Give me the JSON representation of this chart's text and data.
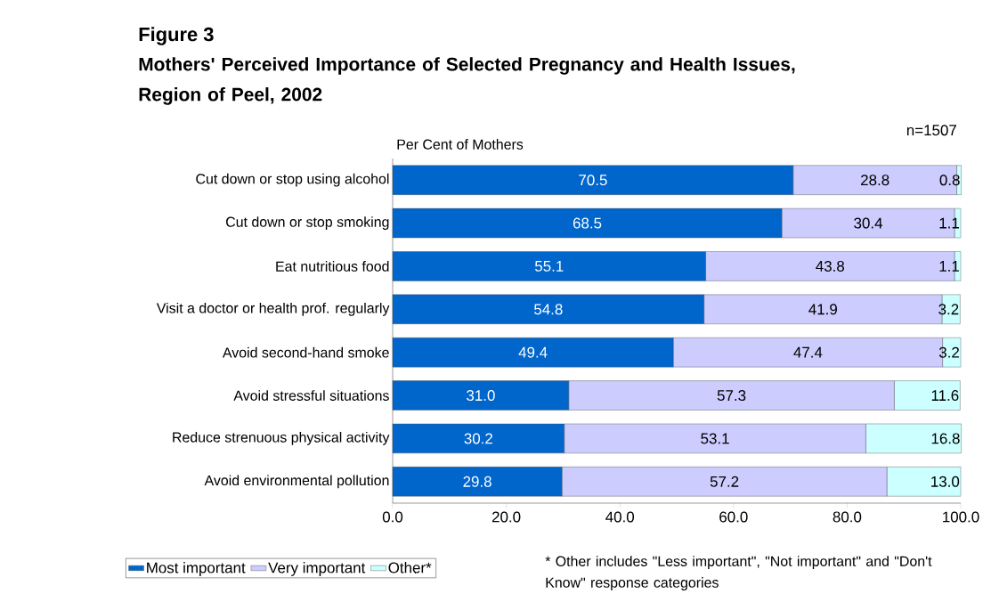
{
  "chart_data": {
    "type": "bar",
    "orientation": "horizontal",
    "stacked": true,
    "title": "Figure 3",
    "subtitle": "Mothers' Perceived Importance of Selected Pregnancy and Health Issues, Region of Peel, 2002",
    "xlabel": "Per Cent of Mothers",
    "categories": [
      "Cut down or stop using alcohol",
      "Cut down or stop smoking",
      "Eat nutritious food",
      "Visit a doctor or health prof. regularly",
      "Avoid second-hand smoke",
      "Avoid stressful situations",
      "Reduce strenuous physical activity",
      "Avoid environmental pollution"
    ],
    "series": [
      {
        "name": "Most important",
        "color": "#0066cc",
        "values": [
          70.5,
          68.5,
          55.1,
          54.8,
          49.4,
          31.0,
          30.2,
          29.8
        ],
        "value_labels": [
          "70.5",
          "68.5",
          "55.1",
          "54.8",
          "49.4",
          "31.0",
          "30.2",
          "29.8"
        ]
      },
      {
        "name": "Very important",
        "color": "#ccccff",
        "values": [
          28.8,
          30.4,
          43.8,
          41.9,
          47.4,
          57.3,
          53.1,
          57.2
        ],
        "value_labels": [
          "28.8",
          "30.4",
          "43.8",
          "41.9",
          "47.4",
          "57.3",
          "53.1",
          "57.2"
        ]
      },
      {
        "name": "Other*",
        "color": "#ccffff",
        "values": [
          0.8,
          1.1,
          1.1,
          3.2,
          3.2,
          11.6,
          16.8,
          13.0
        ],
        "value_labels": [
          "0.8",
          "1.1",
          "1.1",
          "3.2",
          "3.2",
          "11.6",
          "16.8",
          "13.0"
        ]
      }
    ],
    "xlim": [
      0,
      100
    ],
    "xticks": [
      {
        "value": 0,
        "label": "0.0"
      },
      {
        "value": 20,
        "label": "20.0"
      },
      {
        "value": 40,
        "label": "40.0"
      },
      {
        "value": 60,
        "label": "60.0"
      },
      {
        "value": 80,
        "label": "80.0"
      },
      {
        "value": 100,
        "label": "100.0"
      }
    ],
    "legend": "bottom",
    "annotations": [
      "n=1507",
      "* Other includes \"Less important\", \"Not important\" and \"Don't Know\" response categories"
    ]
  }
}
